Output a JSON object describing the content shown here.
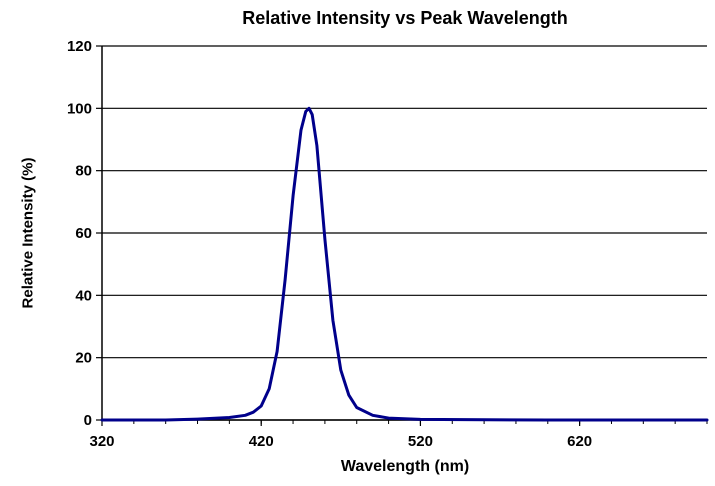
{
  "chart_data": {
    "type": "line",
    "title": "Relative Intensity vs Peak Wavelength",
    "xlabel": "Wavelength (nm)",
    "ylabel": "Relative Intensity (%)",
    "xlim": [
      320,
      700
    ],
    "ylim": [
      0,
      120
    ],
    "xticks": [
      320,
      420,
      520,
      620
    ],
    "yticks": [
      0,
      20,
      40,
      60,
      80,
      100,
      120
    ],
    "grid": "horizontal",
    "series": [
      {
        "color": "#00008b",
        "x": [
          320,
          360,
          380,
          400,
          410,
          415,
          420,
          425,
          430,
          435,
          440,
          445,
          448,
          450,
          452,
          455,
          460,
          465,
          470,
          475,
          480,
          490,
          500,
          520,
          600,
          700
        ],
        "y": [
          0,
          0,
          0.3,
          0.8,
          1.5,
          2.5,
          4.5,
          10,
          22,
          45,
          72,
          93,
          99,
          100,
          98,
          88,
          58,
          32,
          16,
          8,
          4,
          1.5,
          0.6,
          0.2,
          0,
          0
        ]
      }
    ]
  }
}
